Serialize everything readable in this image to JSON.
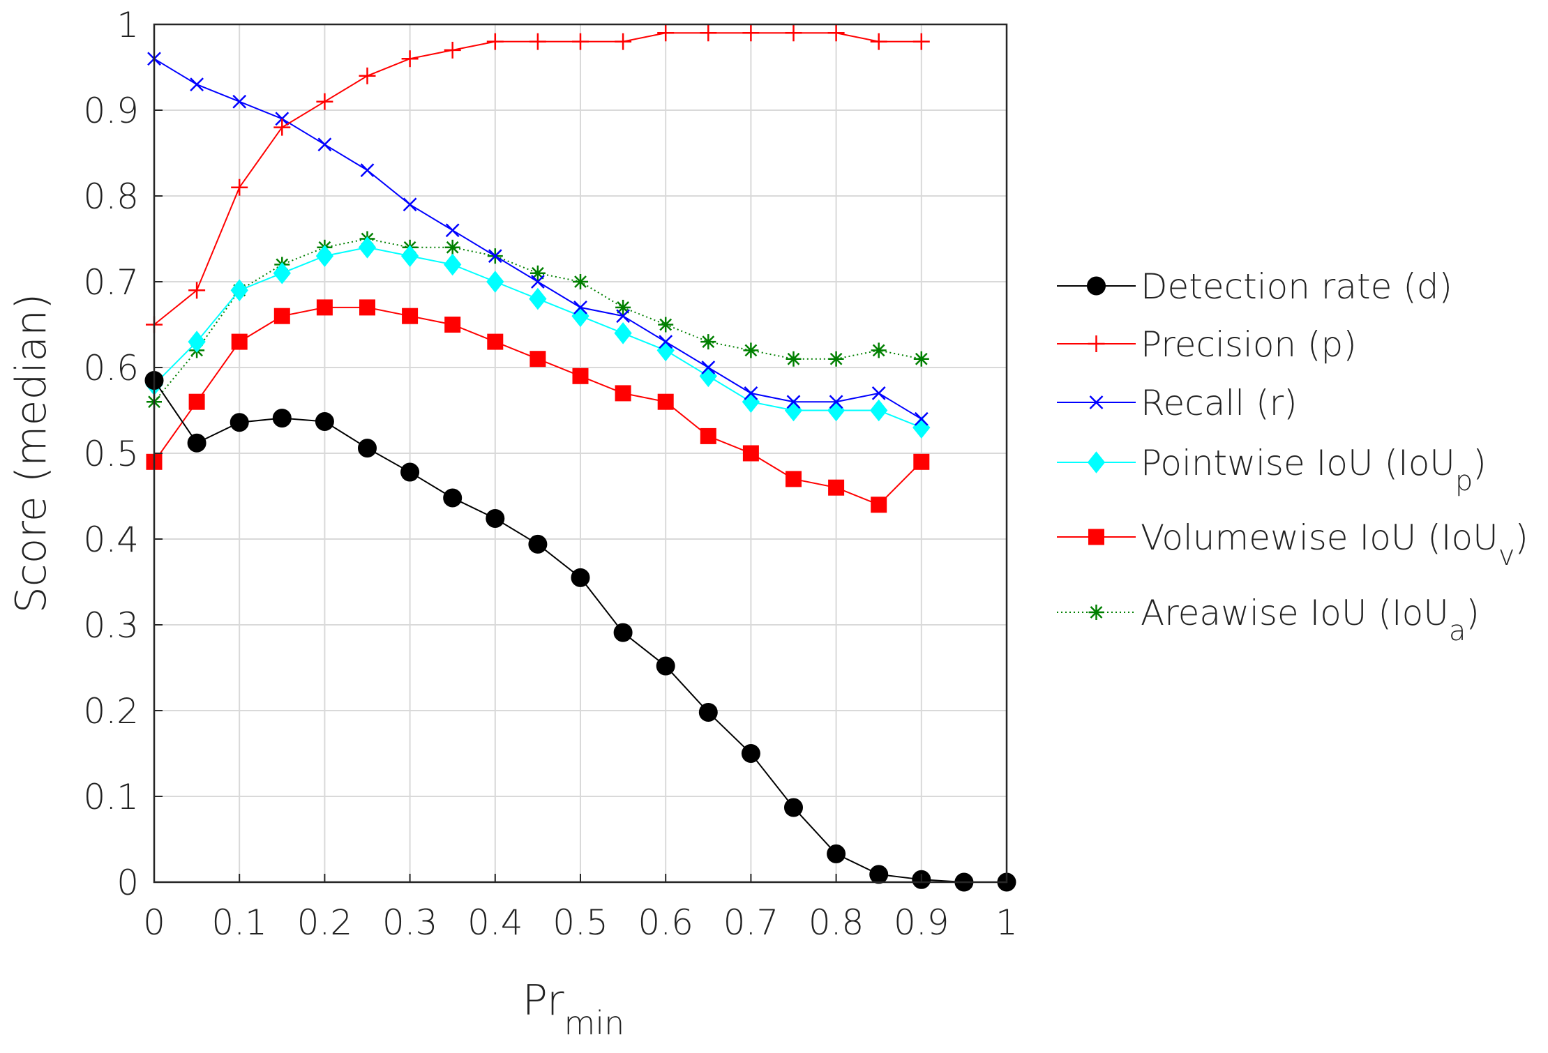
{
  "chart_data": {
    "type": "line",
    "title": "",
    "xlabel": "Pr",
    "xlabel_subscript": "min",
    "ylabel": "Score (median)",
    "xlim": [
      0,
      1
    ],
    "ylim": [
      0,
      1
    ],
    "grid": true,
    "legend_position": "right",
    "xticks": [
      "0",
      "0.1",
      "0.2",
      "0.3",
      "0.4",
      "0.5",
      "0.6",
      "0.7",
      "0.8",
      "0.9",
      "1"
    ],
    "yticks": [
      "0",
      "0.1",
      "0.2",
      "0.3",
      "0.4",
      "0.5",
      "0.6",
      "0.7",
      "0.8",
      "0.9",
      "1"
    ],
    "series": [
      {
        "name": "Detection rate (d)",
        "label_main": "Detection rate (d)",
        "label_sub": "",
        "label_tail": "",
        "color": "#000000",
        "marker": "circle",
        "line_style": "solid",
        "x": [
          0,
          0.05,
          0.1,
          0.15,
          0.2,
          0.25,
          0.3,
          0.35,
          0.4,
          0.45,
          0.5,
          0.55,
          0.6,
          0.65,
          0.7,
          0.75,
          0.8,
          0.85,
          0.9,
          0.95,
          1.0
        ],
        "values": [
          0.585,
          0.512,
          0.536,
          0.541,
          0.537,
          0.506,
          0.478,
          0.448,
          0.424,
          0.394,
          0.355,
          0.291,
          0.252,
          0.198,
          0.15,
          0.087,
          0.033,
          0.009,
          0.003,
          0.0,
          0.0
        ]
      },
      {
        "name": "Precision (p)",
        "label_main": "Precision (p)",
        "label_sub": "",
        "label_tail": "",
        "color": "#ff0000",
        "marker": "plus",
        "line_style": "solid",
        "x": [
          0,
          0.05,
          0.1,
          0.15,
          0.2,
          0.25,
          0.3,
          0.35,
          0.4,
          0.45,
          0.5,
          0.55,
          0.6,
          0.65,
          0.7,
          0.75,
          0.8,
          0.85,
          0.9
        ],
        "values": [
          0.65,
          0.69,
          0.81,
          0.88,
          0.91,
          0.94,
          0.96,
          0.97,
          0.98,
          0.98,
          0.98,
          0.98,
          0.99,
          0.99,
          0.99,
          0.99,
          0.99,
          0.98,
          0.98
        ]
      },
      {
        "name": "Recall (r)",
        "label_main": "Recall (r)",
        "label_sub": "",
        "label_tail": "",
        "color": "#0000ff",
        "marker": "x",
        "line_style": "solid",
        "x": [
          0,
          0.05,
          0.1,
          0.15,
          0.2,
          0.25,
          0.3,
          0.35,
          0.4,
          0.45,
          0.5,
          0.55,
          0.6,
          0.65,
          0.7,
          0.75,
          0.8,
          0.85,
          0.9
        ],
        "values": [
          0.96,
          0.93,
          0.91,
          0.89,
          0.86,
          0.83,
          0.79,
          0.76,
          0.73,
          0.7,
          0.67,
          0.66,
          0.63,
          0.6,
          0.57,
          0.56,
          0.56,
          0.57,
          0.54
        ]
      },
      {
        "name": "Pointwise IoU (IoUp)",
        "label_main": "Pointwise IoU (IoU",
        "label_sub": "p",
        "label_tail": ")",
        "color": "#00ffff",
        "marker": "diamond",
        "line_style": "solid",
        "x": [
          0,
          0.05,
          0.1,
          0.15,
          0.2,
          0.25,
          0.3,
          0.35,
          0.4,
          0.45,
          0.5,
          0.55,
          0.6,
          0.65,
          0.7,
          0.75,
          0.8,
          0.85,
          0.9
        ],
        "values": [
          0.58,
          0.63,
          0.69,
          0.71,
          0.73,
          0.74,
          0.73,
          0.72,
          0.7,
          0.68,
          0.66,
          0.64,
          0.62,
          0.59,
          0.56,
          0.55,
          0.55,
          0.55,
          0.53
        ]
      },
      {
        "name": "Volumewise IoU (IoUv)",
        "label_main": "Volumewise IoU (IoU",
        "label_sub": "v",
        "label_tail": ")",
        "color": "#ff0000",
        "marker": "square",
        "line_style": "solid",
        "x": [
          0,
          0.05,
          0.1,
          0.15,
          0.2,
          0.25,
          0.3,
          0.35,
          0.4,
          0.45,
          0.5,
          0.55,
          0.6,
          0.65,
          0.7,
          0.75,
          0.8,
          0.85,
          0.9
        ],
        "values": [
          0.49,
          0.56,
          0.63,
          0.66,
          0.67,
          0.67,
          0.66,
          0.65,
          0.63,
          0.61,
          0.59,
          0.57,
          0.56,
          0.52,
          0.5,
          0.47,
          0.46,
          0.44,
          0.49
        ]
      },
      {
        "name": "Areawise IoU (IoUa)",
        "label_main": "Areawise IoU (IoU",
        "label_sub": "a",
        "label_tail": ")",
        "color": "#007f00",
        "marker": "asterisk",
        "line_style": "dotted",
        "x": [
          0,
          0.05,
          0.1,
          0.15,
          0.2,
          0.25,
          0.3,
          0.35,
          0.4,
          0.45,
          0.5,
          0.55,
          0.6,
          0.65,
          0.7,
          0.75,
          0.8,
          0.85,
          0.9
        ],
        "values": [
          0.56,
          0.62,
          0.69,
          0.72,
          0.74,
          0.75,
          0.74,
          0.74,
          0.73,
          0.71,
          0.7,
          0.67,
          0.65,
          0.63,
          0.62,
          0.61,
          0.61,
          0.62,
          0.61
        ]
      }
    ]
  }
}
